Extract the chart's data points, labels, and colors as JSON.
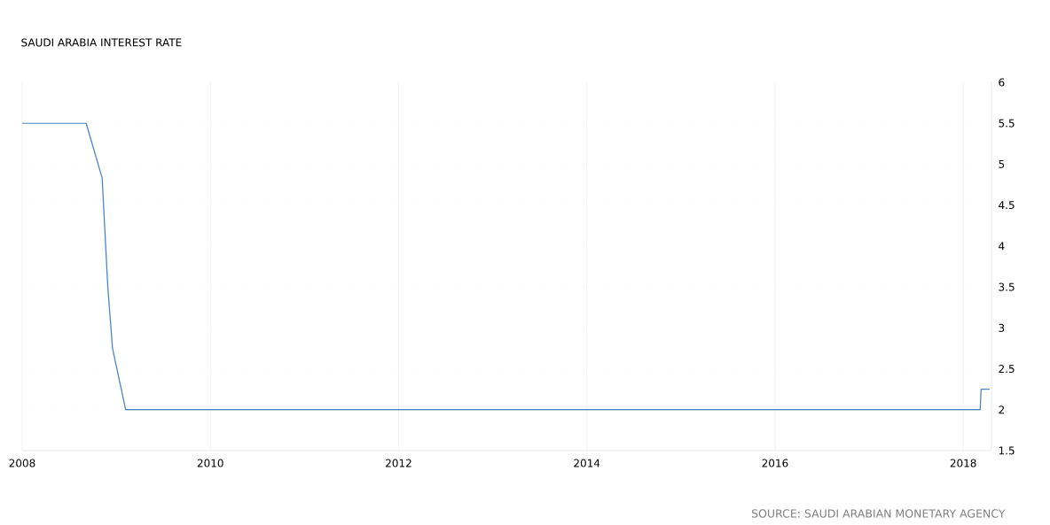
{
  "chart_data": {
    "type": "line",
    "title": "SAUDI ARABIA INTEREST RATE",
    "annotations": [
      "SOURCE: SAUDI ARABIAN MONETARY AGENCY"
    ],
    "x": [
      2008.0,
      2008.68,
      2008.85,
      2008.91,
      2008.96,
      2009.1,
      2018.18,
      2018.19,
      2018.28
    ],
    "series": [
      {
        "color": "#4f86c0",
        "values": [
          5.5,
          5.5,
          4.83,
          3.5,
          2.75,
          2.0,
          2.0,
          2.25,
          2.25
        ]
      }
    ],
    "xlim": [
      2008,
      2018.3
    ],
    "xticks": [
      2008,
      2010,
      2012,
      2014,
      2016,
      2018
    ],
    "ylim": [
      1.5,
      6
    ],
    "yticks": [
      1.5,
      2,
      2.5,
      3,
      3.5,
      4,
      4.5,
      5,
      5.5,
      6
    ],
    "grid": true,
    "marker": "none",
    "line_style": "solid"
  }
}
